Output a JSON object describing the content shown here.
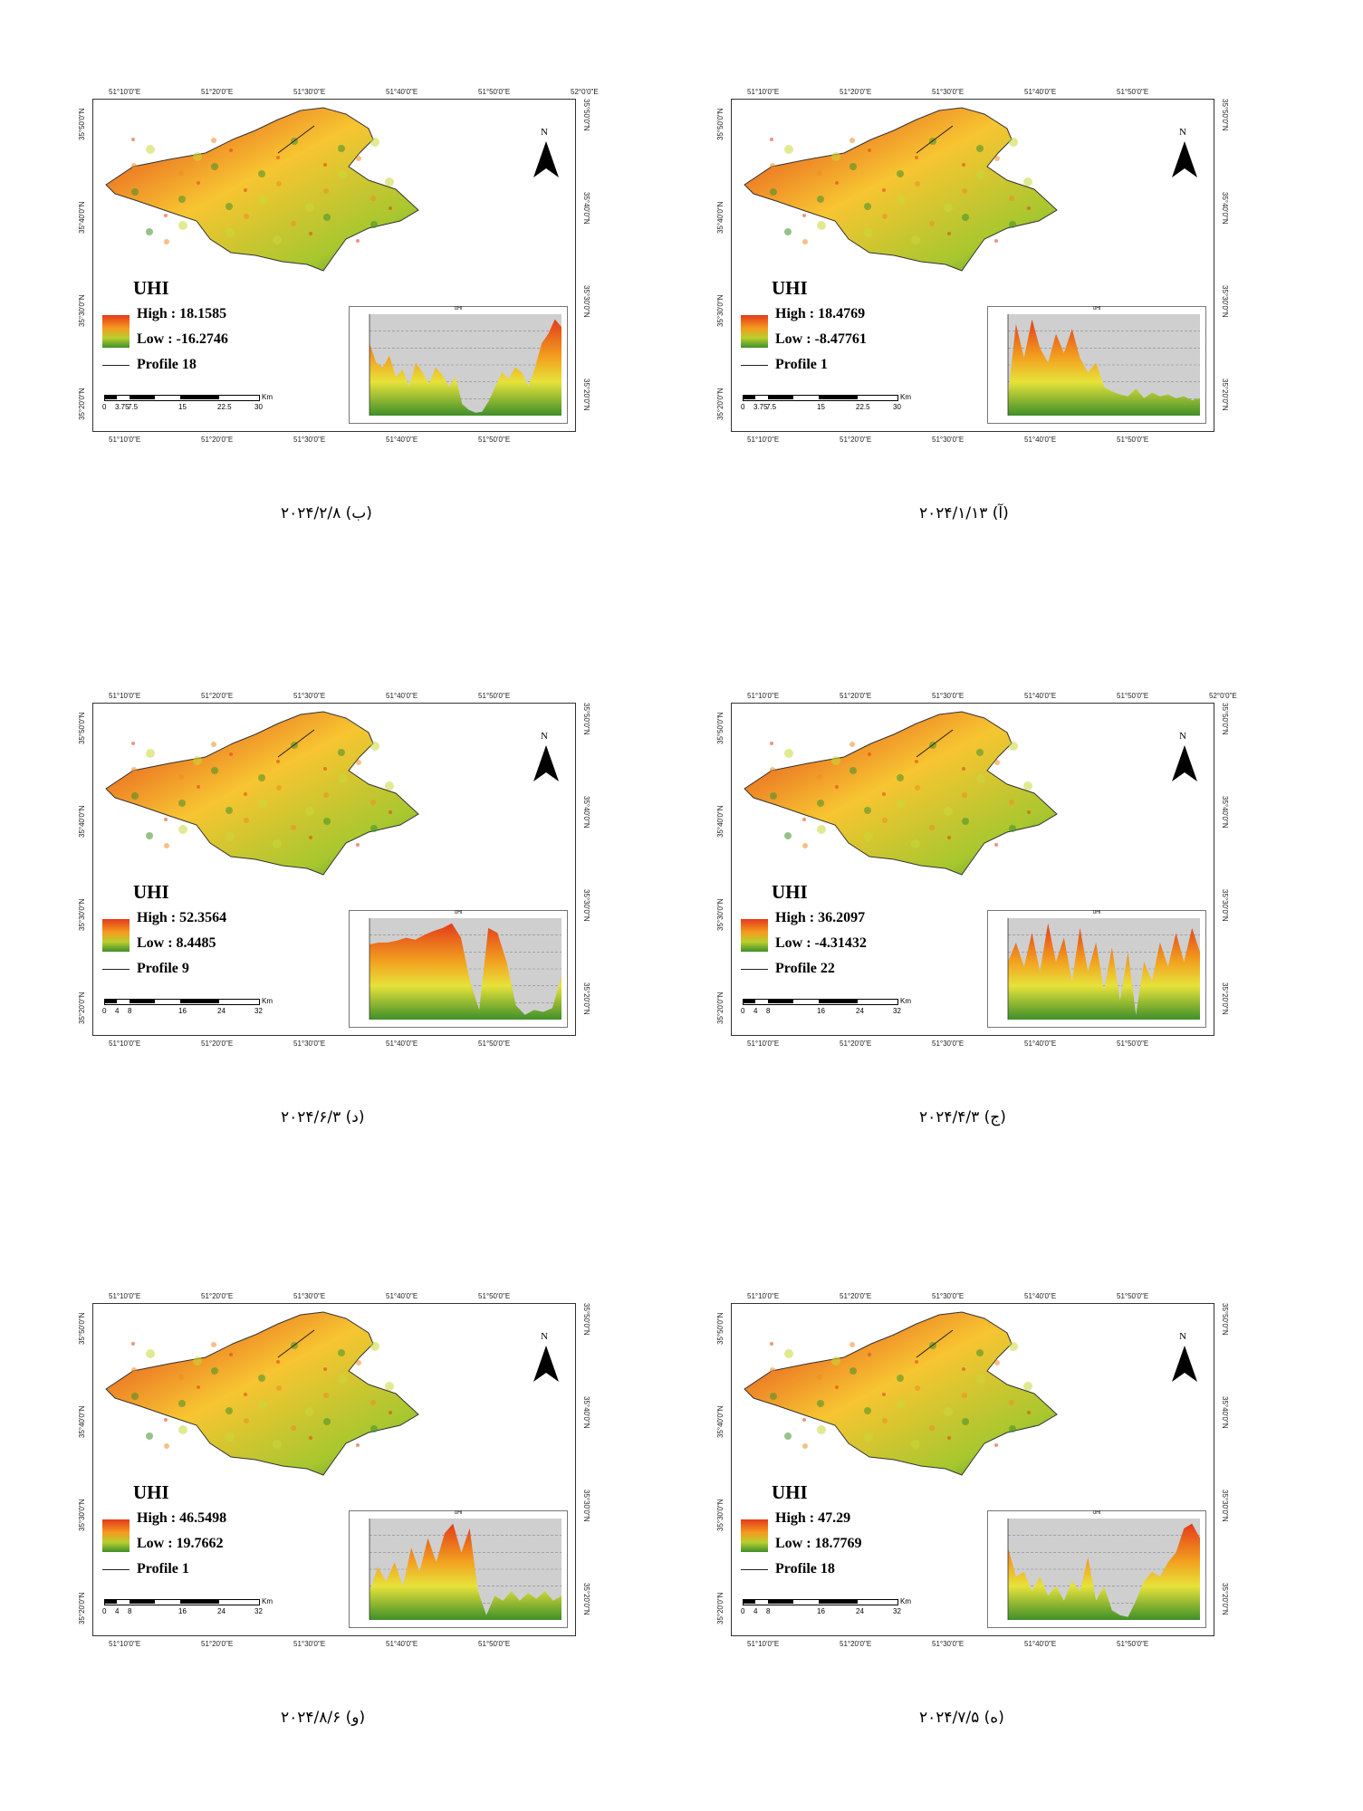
{
  "panels": [
    {
      "id": "b",
      "caption": "(ب) ۲۰۲۴/۲/۸",
      "top_lon": [
        "51°10'0\"E",
        "51°20'0\"E",
        "51°30'0\"E",
        "51°40'0\"E",
        "51°50'0\"E",
        "52°0'0\"E"
      ],
      "bottom_lon": [
        "51°10'0\"E",
        "51°20'0\"E",
        "51°30'0\"E",
        "51°40'0\"E",
        "51°50'0\"E"
      ],
      "lat": [
        "35°50'0\"N",
        "35°40'0\"N",
        "35°30'0\"N",
        "35°20'0\"N"
      ],
      "north": "N",
      "uhi_label": "UHI",
      "high": "High : 18.1585",
      "low": "Low : -16.2746",
      "profile": "Profile 18",
      "scale_labels": [
        "0",
        "3.75",
        "7.5",
        "15",
        "22.5",
        "30"
      ],
      "scale_unit": "Km",
      "profile_title": "UHI",
      "profile_values": [
        0.75,
        0.55,
        0.5,
        0.62,
        0.4,
        0.48,
        0.3,
        0.55,
        0.45,
        0.33,
        0.5,
        0.42,
        0.3,
        0.4,
        0.12,
        0.06,
        0.03,
        0.04,
        0.15,
        0.3,
        0.45,
        0.38,
        0.5,
        0.45,
        0.3,
        0.5,
        0.75,
        0.85,
        1.0,
        0.92
      ],
      "colors": {
        "high": "#e33b1a",
        "mid": "#f7c531",
        "low": "#3f8f2a"
      }
    },
    {
      "id": "a",
      "caption": "(آ) ۲۰۲۴/۱/۱۳",
      "top_lon": [
        "51°10'0\"E",
        "51°20'0\"E",
        "51°30'0\"E",
        "51°40'0\"E",
        "51°50'0\"E"
      ],
      "bottom_lon": [
        "51°10'0\"E",
        "51°20'0\"E",
        "51°30'0\"E",
        "51°40'0\"E",
        "51°50'0\"E"
      ],
      "lat": [
        "35°50'0\"N",
        "35°40'0\"N",
        "35°30'0\"N",
        "35°20'0\"N"
      ],
      "north": "N",
      "uhi_label": "UHI",
      "high": "High : 18.4769",
      "low": "Low : -8.47761",
      "profile": "Profile 1",
      "scale_labels": [
        "0",
        "3.75",
        "7.5",
        "15",
        "22.5",
        "30"
      ],
      "scale_unit": "Km",
      "profile_title": "UHI",
      "profile_values": [
        0.2,
        0.95,
        0.6,
        1.0,
        0.7,
        0.55,
        0.85,
        0.65,
        0.9,
        0.6,
        0.45,
        0.55,
        0.3,
        0.25,
        0.22,
        0.2,
        0.28,
        0.18,
        0.24,
        0.2,
        0.22,
        0.18,
        0.2,
        0.16,
        0.18
      ],
      "colors": {
        "high": "#e33b1a",
        "mid": "#f7c531",
        "low": "#3f8f2a"
      }
    },
    {
      "id": "d",
      "caption": "(د) ۲۰۲۴/۶/۳",
      "top_lon": [
        "51°10'0\"E",
        "51°20'0\"E",
        "51°30'0\"E",
        "51°40'0\"E",
        "51°50'0\"E"
      ],
      "bottom_lon": [
        "51°10'0\"E",
        "51°20'0\"E",
        "51°30'0\"E",
        "51°40'0\"E",
        "51°50'0\"E"
      ],
      "lat": [
        "35°50'0\"N",
        "35°40'0\"N",
        "35°30'0\"N",
        "35°20'0\"N"
      ],
      "north": "N",
      "uhi_label": "UHI",
      "high": "High : 52.3564",
      "low": "Low : 8.4485",
      "profile": "Profile 9",
      "scale_labels": [
        "0",
        "4",
        "8",
        "16",
        "24",
        "32"
      ],
      "scale_unit": "Km",
      "profile_title": "UHI",
      "profile_values": [
        0.78,
        0.8,
        0.8,
        0.82,
        0.85,
        0.83,
        0.88,
        0.92,
        0.95,
        1.0,
        0.85,
        0.4,
        0.1,
        0.95,
        0.9,
        0.6,
        0.15,
        0.05,
        0.1,
        0.08,
        0.12,
        0.45
      ],
      "colors": {
        "high": "#e33b1a",
        "mid": "#f7c531",
        "low": "#3f8f2a"
      }
    },
    {
      "id": "j",
      "caption": "(ج) ۲۰۲۴/۴/۳",
      "top_lon": [
        "51°10'0\"E",
        "51°20'0\"E",
        "51°30'0\"E",
        "51°40'0\"E",
        "51°50'0\"E",
        "52°0'0\"E"
      ],
      "bottom_lon": [
        "51°10'0\"E",
        "51°20'0\"E",
        "51°30'0\"E",
        "51°40'0\"E",
        "51°50'0\"E"
      ],
      "lat": [
        "35°50'0\"N",
        "35°40'0\"N",
        "35°30'0\"N",
        "35°20'0\"N"
      ],
      "north": "N",
      "uhi_label": "UHI",
      "high": "High : 36.2097",
      "low": "Low : -4.31432",
      "profile": "Profile 22",
      "scale_labels": [
        "0",
        "4",
        "8",
        "16",
        "24",
        "32"
      ],
      "scale_unit": "Km",
      "profile_title": "UHI",
      "profile_values": [
        0.6,
        0.8,
        0.55,
        0.9,
        0.5,
        1.0,
        0.6,
        0.85,
        0.4,
        0.95,
        0.5,
        0.8,
        0.3,
        0.75,
        0.2,
        0.7,
        0.05,
        0.6,
        0.4,
        0.8,
        0.55,
        0.9,
        0.6,
        0.95,
        0.7
      ],
      "colors": {
        "high": "#e33b1a",
        "mid": "#f7c531",
        "low": "#3f8f2a"
      }
    },
    {
      "id": "v",
      "caption": "(و) ۲۰۲۴/۸/۶",
      "top_lon": [
        "51°10'0\"E",
        "51°20'0\"E",
        "51°30'0\"E",
        "51°40'0\"E",
        "51°50'0\"E"
      ],
      "bottom_lon": [
        "51°10'0\"E",
        "51°20'0\"E",
        "51°30'0\"E",
        "51°40'0\"E",
        "51°50'0\"E"
      ],
      "lat": [
        "35°50'0\"N",
        "35°40'0\"N",
        "35°30'0\"N",
        "35°20'0\"N"
      ],
      "north": "N",
      "uhi_label": "UHI",
      "high": "High : 46.5498",
      "low": "Low : 19.7662",
      "profile": "Profile 1",
      "scale_labels": [
        "0",
        "4",
        "8",
        "16",
        "24",
        "32"
      ],
      "scale_unit": "Km",
      "profile_title": "UHI",
      "profile_values": [
        0.3,
        0.55,
        0.4,
        0.6,
        0.35,
        0.75,
        0.5,
        0.85,
        0.6,
        0.9,
        1.0,
        0.7,
        0.95,
        0.3,
        0.05,
        0.25,
        0.2,
        0.3,
        0.2,
        0.28,
        0.22,
        0.3,
        0.2,
        0.25
      ],
      "colors": {
        "high": "#e33b1a",
        "mid": "#f7c531",
        "low": "#3f8f2a"
      }
    },
    {
      "id": "h",
      "caption": "(ه) ۲۰۲۴/۷/۵",
      "top_lon": [
        "51°10'0\"E",
        "51°20'0\"E",
        "51°30'0\"E",
        "51°40'0\"E",
        "51°50'0\"E"
      ],
      "bottom_lon": [
        "51°10'0\"E",
        "51°20'0\"E",
        "51°30'0\"E",
        "51°40'0\"E",
        "51°50'0\"E"
      ],
      "lat": [
        "35°50'0\"N",
        "35°40'0\"N",
        "35°30'0\"N",
        "35°20'0\"N"
      ],
      "north": "N",
      "uhi_label": "UHI",
      "high": "High : 47.29",
      "low": "Low : 18.7769",
      "profile": "Profile 18",
      "scale_labels": [
        "0",
        "4",
        "8",
        "16",
        "24",
        "32"
      ],
      "scale_unit": "Km",
      "profile_title": "UHI",
      "profile_values": [
        0.75,
        0.45,
        0.5,
        0.3,
        0.45,
        0.25,
        0.35,
        0.2,
        0.4,
        0.3,
        0.65,
        0.2,
        0.35,
        0.1,
        0.05,
        0.03,
        0.2,
        0.4,
        0.5,
        0.45,
        0.6,
        0.7,
        0.95,
        1.0,
        0.85
      ],
      "colors": {
        "high": "#e33b1a",
        "mid": "#f7c531",
        "low": "#3f8f2a"
      }
    }
  ]
}
